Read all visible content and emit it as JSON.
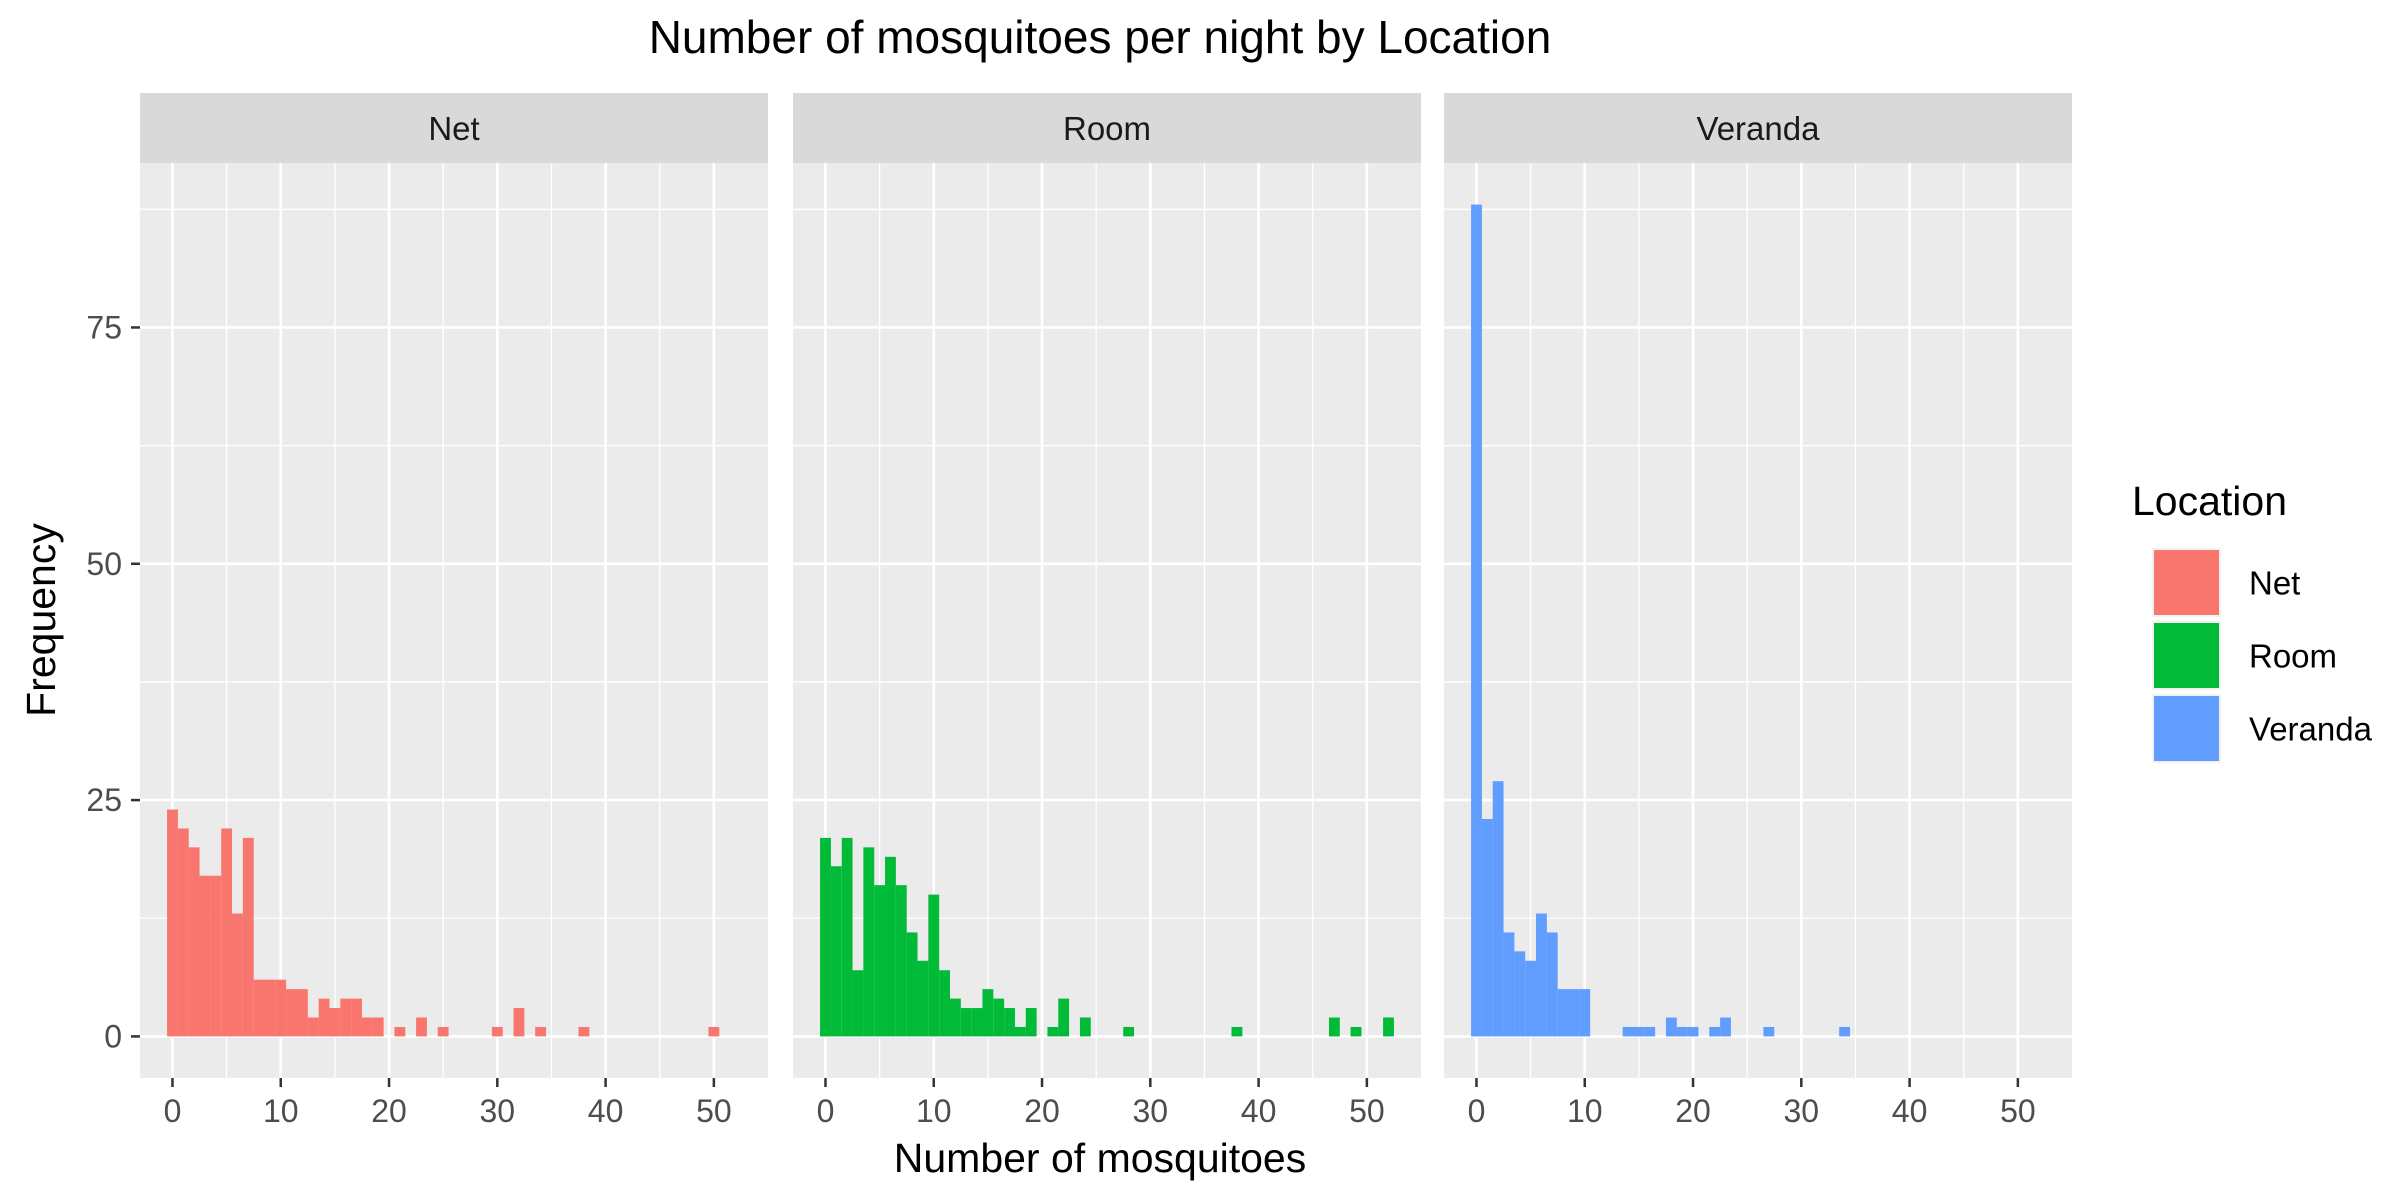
{
  "chart_data": {
    "type": "bar",
    "title": "Number of mosquitoes per night by Location",
    "xlabel": "Number of mosquitoes",
    "ylabel": "Frequency",
    "xlim": [
      -3,
      55
    ],
    "ylim": [
      -4.4,
      92.4
    ],
    "x_ticks": [
      0,
      10,
      20,
      30,
      40,
      50
    ],
    "y_ticks": [
      0,
      25,
      50,
      75
    ],
    "bin_width": 1,
    "grid": true,
    "legend": {
      "title": "Location",
      "position": "right"
    },
    "series": [
      {
        "name": "Net",
        "color": "#F8766D",
        "x": [
          0,
          1,
          2,
          3,
          4,
          5,
          6,
          7,
          8,
          9,
          10,
          11,
          12,
          13,
          14,
          15,
          16,
          17,
          18,
          19,
          21,
          23,
          25,
          30,
          32,
          34,
          38,
          50
        ],
        "values": [
          24,
          22,
          20,
          17,
          17,
          22,
          13,
          21,
          6,
          6,
          6,
          5,
          5,
          2,
          4,
          3,
          4,
          4,
          2,
          2,
          1,
          2,
          1,
          1,
          3,
          1,
          1,
          1
        ]
      },
      {
        "name": "Room",
        "color": "#00BA38",
        "x": [
          0,
          1,
          2,
          3,
          4,
          5,
          6,
          7,
          8,
          9,
          10,
          11,
          12,
          13,
          14,
          15,
          16,
          17,
          18,
          19,
          21,
          22,
          24,
          28,
          38,
          47,
          49,
          52
        ],
        "values": [
          21,
          18,
          21,
          7,
          20,
          16,
          19,
          16,
          11,
          8,
          15,
          7,
          4,
          3,
          3,
          5,
          4,
          3,
          1,
          3,
          1,
          4,
          2,
          1,
          1,
          2,
          1,
          2
        ]
      },
      {
        "name": "Veranda",
        "color": "#619CFF",
        "x": [
          0,
          1,
          2,
          3,
          4,
          5,
          6,
          7,
          8,
          9,
          10,
          14,
          15,
          16,
          18,
          19,
          20,
          22,
          23,
          27,
          34
        ],
        "values": [
          88,
          23,
          27,
          11,
          9,
          8,
          13,
          11,
          5,
          5,
          5,
          1,
          1,
          1,
          2,
          1,
          1,
          1,
          2,
          1,
          1
        ]
      }
    ]
  }
}
